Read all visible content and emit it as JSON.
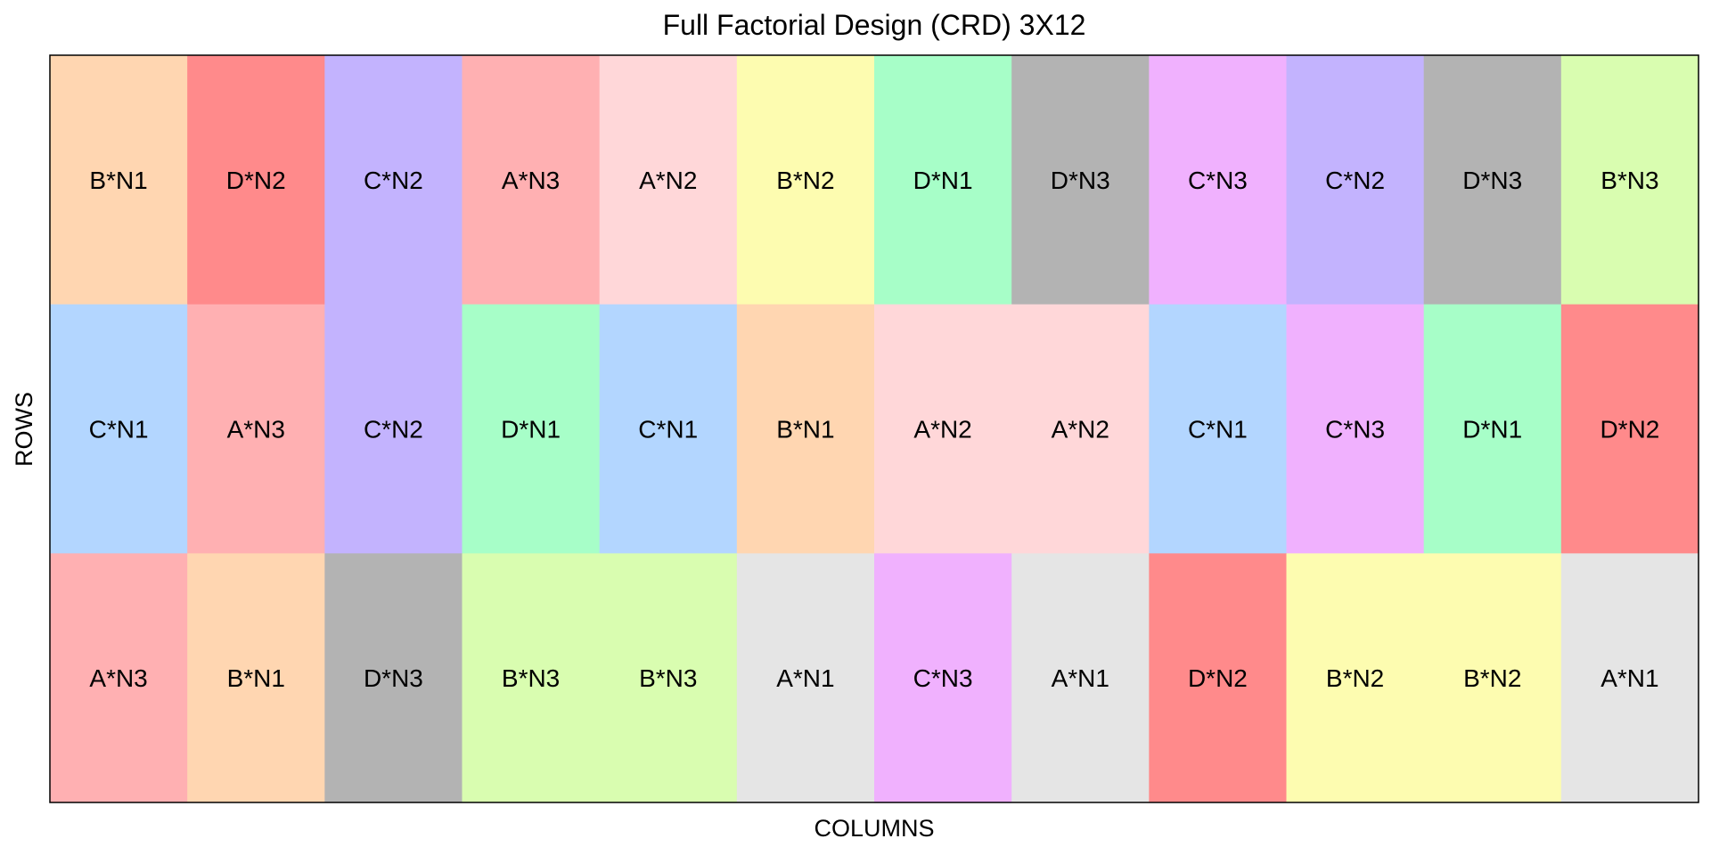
{
  "chart_data": {
    "type": "heatmap",
    "title": "Full Factorial Design (CRD) 3X12",
    "xlabel": "COLUMNS",
    "ylabel": "ROWS",
    "n_rows": 3,
    "n_cols": 12,
    "rows": [
      [
        "B*N1",
        "D*N2",
        "C*N2",
        "A*N3",
        "A*N2",
        "B*N2",
        "D*N1",
        "D*N3",
        "C*N3",
        "C*N2",
        "D*N3",
        "B*N3"
      ],
      [
        "C*N1",
        "A*N3",
        "C*N2",
        "D*N1",
        "C*N1",
        "B*N1",
        "A*N2",
        "A*N2",
        "C*N1",
        "C*N3",
        "D*N1",
        "D*N2"
      ],
      [
        "A*N3",
        "B*N1",
        "D*N3",
        "B*N3",
        "B*N3",
        "A*N1",
        "C*N3",
        "A*N1",
        "D*N2",
        "B*N2",
        "B*N2",
        "A*N1"
      ]
    ],
    "treatment_colors": {
      "A*N1": "#e5e5e5",
      "A*N2": "#ffd7d9",
      "A*N3": "#ffb0b2",
      "B*N1": "#ffd6b1",
      "B*N2": "#fdfcb0",
      "B*N3": "#d9fdb0",
      "C*N1": "#b3d6ff",
      "C*N2": "#c3b3fe",
      "C*N3": "#f0b1fe",
      "D*N1": "#a7fec8",
      "D*N2": "#ff8a8b",
      "D*N3": "#b3b3b3"
    },
    "grid": false,
    "legend": "none"
  }
}
